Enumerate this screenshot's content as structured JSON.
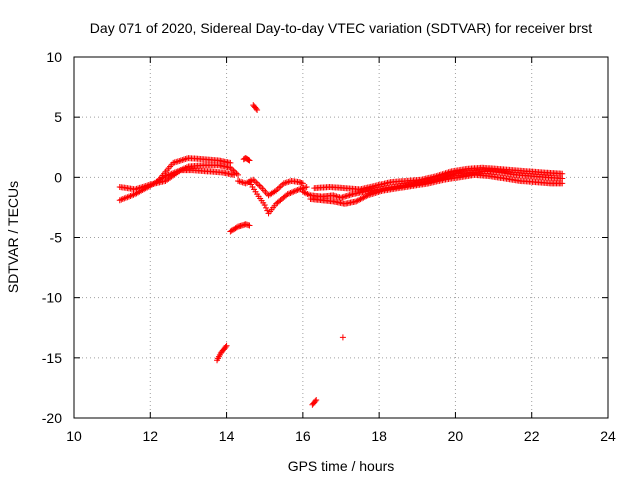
{
  "chart_data": {
    "type": "scatter",
    "title": "Day 071 of 2020, Sidereal Day-to-day VTEC variation (SDTVAR) for receiver brst",
    "xlabel": "GPS time / hours",
    "ylabel": "SDTVAR / TECUs",
    "xlim": [
      10,
      24
    ],
    "ylim": [
      -20,
      10
    ],
    "xticks": [
      10,
      12,
      14,
      16,
      18,
      20,
      22,
      24
    ],
    "yticks": [
      -20,
      -15,
      -10,
      -5,
      0,
      5,
      10
    ],
    "grid": true,
    "marker": "+",
    "series": [
      {
        "name": "brst",
        "color": "#ff0000",
        "segments": [
          {
            "x": [
              11.2,
              11.6,
              12.0,
              12.4,
              12.8,
              13.0,
              13.4,
              13.8,
              14.1,
              14.3
            ],
            "y": [
              -0.8,
              -1.0,
              -0.6,
              -0.3,
              0.6,
              0.9,
              1.0,
              1.0,
              0.8,
              0.2
            ]
          },
          {
            "x": [
              11.2,
              11.6,
              12.0,
              12.4,
              12.8,
              13.1,
              13.5,
              13.9,
              14.2
            ],
            "y": [
              -1.9,
              -1.4,
              -0.7,
              0.1,
              0.6,
              0.6,
              0.5,
              0.4,
              0.2
            ]
          },
          {
            "x": [
              12.2,
              12.6,
              13.0,
              13.4,
              13.8,
              14.1
            ],
            "y": [
              -0.3,
              1.2,
              1.6,
              1.5,
              1.4,
              1.2
            ]
          },
          {
            "x": [
              14.3,
              14.5,
              14.7,
              14.9,
              15.1,
              15.3,
              15.5,
              15.7,
              15.9,
              16.0
            ],
            "y": [
              -0.3,
              -0.5,
              -0.2,
              -0.8,
              -1.5,
              -1.1,
              -0.5,
              -0.3,
              -0.4,
              -0.5
            ]
          },
          {
            "x": [
              14.6,
              14.8,
              15.0,
              15.1,
              15.3,
              15.6,
              15.9,
              16.1
            ],
            "y": [
              -0.4,
              -1.4,
              -2.3,
              -3.0,
              -2.2,
              -1.4,
              -1.0,
              -0.8
            ]
          },
          {
            "x": [
              16.0,
              16.2,
              16.5,
              16.8,
              17.0,
              17.3,
              17.6,
              18.0,
              18.4,
              18.8,
              19.2,
              19.6,
              20.0,
              20.4,
              20.8,
              21.2,
              21.6,
              22.0,
              22.4,
              22.8
            ],
            "y": [
              -1.2,
              -1.5,
              -1.6,
              -1.5,
              -1.7,
              -1.4,
              -1.2,
              -1.0,
              -0.8,
              -0.6,
              -0.4,
              -0.1,
              0.3,
              0.4,
              0.5,
              0.4,
              0.2,
              0.1,
              0.0,
              -0.1
            ]
          },
          {
            "x": [
              16.2,
              16.5,
              16.8,
              17.1,
              17.4,
              17.7,
              18.1,
              18.5,
              18.9,
              19.3,
              19.7,
              20.1,
              20.5,
              20.9,
              21.3,
              21.7,
              22.1,
              22.5,
              22.8
            ],
            "y": [
              -1.8,
              -1.9,
              -2.0,
              -2.2,
              -2.0,
              -1.5,
              -1.1,
              -0.9,
              -0.7,
              -0.5,
              -0.2,
              0.0,
              0.2,
              0.1,
              -0.1,
              -0.3,
              -0.4,
              -0.5,
              -0.5
            ]
          },
          {
            "x": [
              16.3,
              16.7,
              17.1,
              17.5,
              17.9,
              18.3,
              18.7,
              19.1,
              19.5,
              19.9,
              20.3,
              20.7,
              21.1,
              21.5,
              21.9,
              22.3,
              22.8
            ],
            "y": [
              -0.9,
              -0.8,
              -0.9,
              -1.0,
              -0.7,
              -0.4,
              -0.3,
              -0.2,
              0.1,
              0.5,
              0.7,
              0.8,
              0.7,
              0.6,
              0.5,
              0.4,
              0.3
            ]
          },
          {
            "x": [
              14.1,
              14.2,
              14.3,
              14.4,
              14.5,
              14.6
            ],
            "y": [
              -4.5,
              -4.3,
              -4.1,
              -4.0,
              -3.9,
              -4.0
            ]
          },
          {
            "x": [
              14.7,
              14.75,
              14.8
            ],
            "y": [
              6.0,
              5.8,
              5.6
            ]
          },
          {
            "x": [
              13.75,
              13.8,
              13.85,
              13.9,
              13.95,
              14.0
            ],
            "y": [
              -15.2,
              -14.9,
              -14.6,
              -14.4,
              -14.2,
              -14.0
            ]
          },
          {
            "x": [
              16.25,
              16.3,
              16.35
            ],
            "y": [
              -18.9,
              -18.7,
              -18.5
            ]
          },
          {
            "x": [
              14.45,
              14.5,
              14.55,
              14.6
            ],
            "y": [
              1.5,
              1.6,
              1.5,
              1.4
            ]
          },
          {
            "x": [
              17.05
            ],
            "y": [
              -13.3
            ]
          }
        ]
      }
    ]
  }
}
